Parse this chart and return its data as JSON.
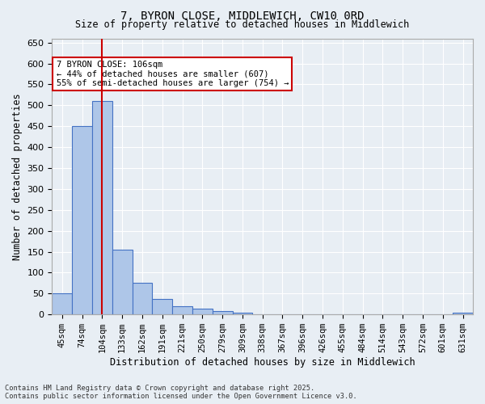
{
  "title_line1": "7, BYRON CLOSE, MIDDLEWICH, CW10 0RD",
  "title_line2": "Size of property relative to detached houses in Middlewich",
  "xlabel": "Distribution of detached houses by size in Middlewich",
  "ylabel": "Number of detached properties",
  "categories": [
    "45sqm",
    "74sqm",
    "104sqm",
    "133sqm",
    "162sqm",
    "191sqm",
    "221sqm",
    "250sqm",
    "279sqm",
    "309sqm",
    "338sqm",
    "367sqm",
    "396sqm",
    "426sqm",
    "455sqm",
    "484sqm",
    "514sqm",
    "543sqm",
    "572sqm",
    "601sqm",
    "631sqm"
  ],
  "values": [
    50,
    450,
    510,
    155,
    75,
    38,
    20,
    13,
    8,
    5,
    0,
    0,
    0,
    0,
    0,
    0,
    0,
    0,
    0,
    0,
    5
  ],
  "bar_color": "#aec6e8",
  "bar_edge_color": "#4472c4",
  "property_sqm": 106,
  "property_bin_index": 2,
  "red_line_color": "#cc0000",
  "annotation_text": "7 BYRON CLOSE: 106sqm\n← 44% of detached houses are smaller (607)\n55% of semi-detached houses are larger (754) →",
  "annotation_box_color": "#ffffff",
  "annotation_box_edge": "#cc0000",
  "ylim": [
    0,
    660
  ],
  "yticks": [
    0,
    50,
    100,
    150,
    200,
    250,
    300,
    350,
    400,
    450,
    500,
    550,
    600,
    650
  ],
  "background_color": "#e8eef4",
  "grid_color": "#ffffff",
  "footer_line1": "Contains HM Land Registry data © Crown copyright and database right 2025.",
  "footer_line2": "Contains public sector information licensed under the Open Government Licence v3.0."
}
